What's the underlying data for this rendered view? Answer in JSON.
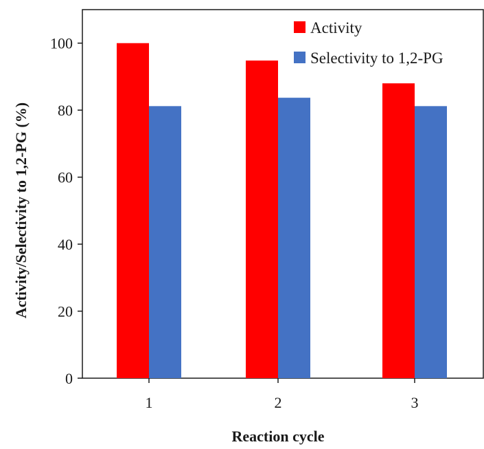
{
  "chart_data": {
    "type": "bar",
    "categories": [
      "1",
      "2",
      "3"
    ],
    "series": [
      {
        "name": "Activity",
        "values": [
          100,
          94.8,
          88
        ],
        "color": "#ff0000"
      },
      {
        "name": "Selectivity to 1,2-PG",
        "values": [
          81.2,
          83.7,
          81.2
        ],
        "color": "#4472c4"
      }
    ],
    "title": "",
    "xlabel": "Reaction cycle",
    "ylabel": "Activity/Selectivity to 1,2-PG (%)",
    "ylim": [
      0,
      110
    ],
    "yticks": [
      0,
      20,
      40,
      60,
      80,
      100
    ],
    "grid": false,
    "legend_position": "top-right"
  }
}
